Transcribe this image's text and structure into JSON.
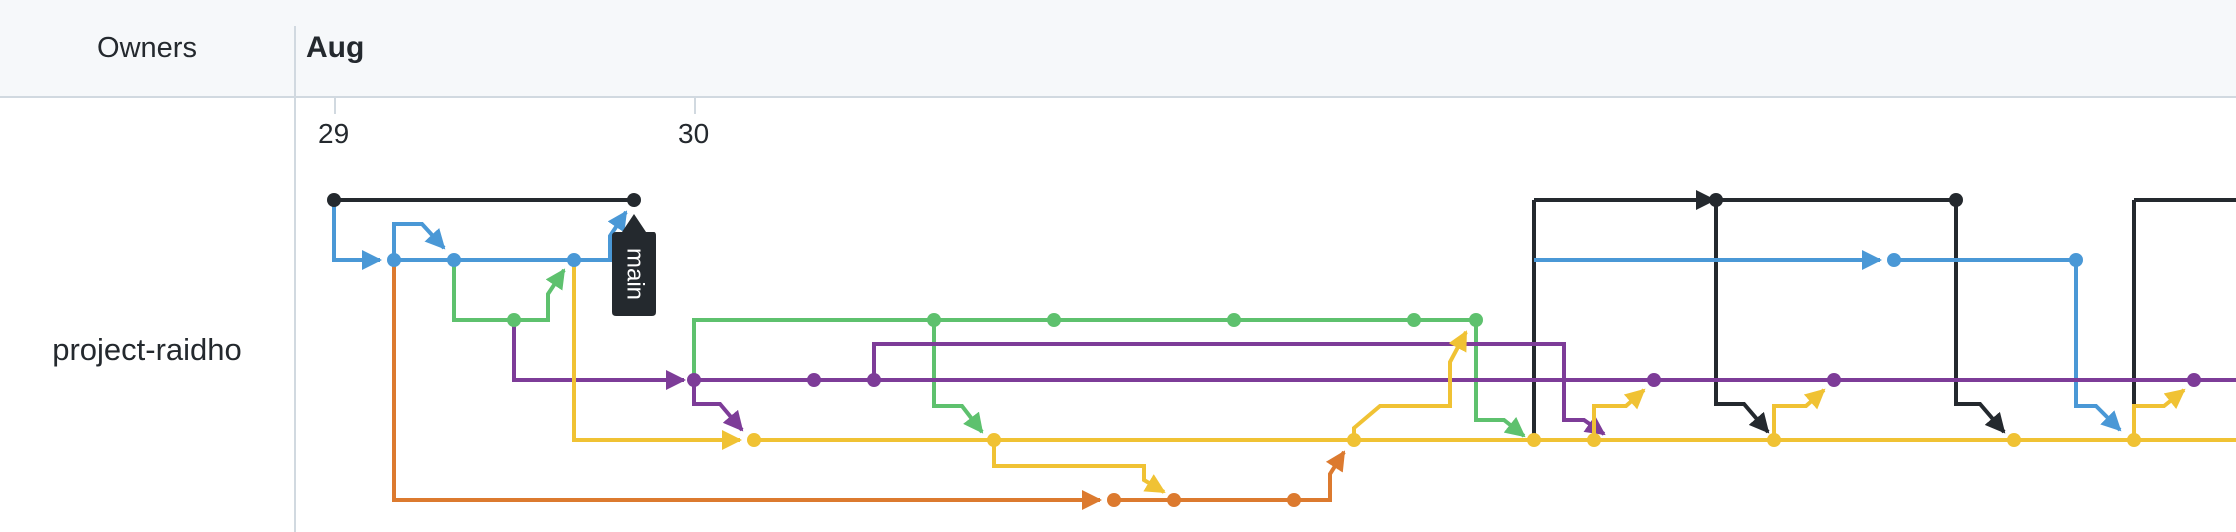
{
  "header": {
    "owners_label": "Owners",
    "month_label": "Aug"
  },
  "timeline": {
    "days": [
      "29",
      "30"
    ]
  },
  "owners": [
    {
      "name": "project-raidho"
    }
  ],
  "branch_tag": {
    "label": "main"
  },
  "colors": {
    "black": "#24292e",
    "blue": "#4a98d6",
    "green": "#5ec16e",
    "purple": "#7d3c98",
    "yellow": "#f0c234",
    "orange": "#dc7a2f",
    "tag_bg": "#24292e",
    "divider": "#d1d9e0"
  }
}
